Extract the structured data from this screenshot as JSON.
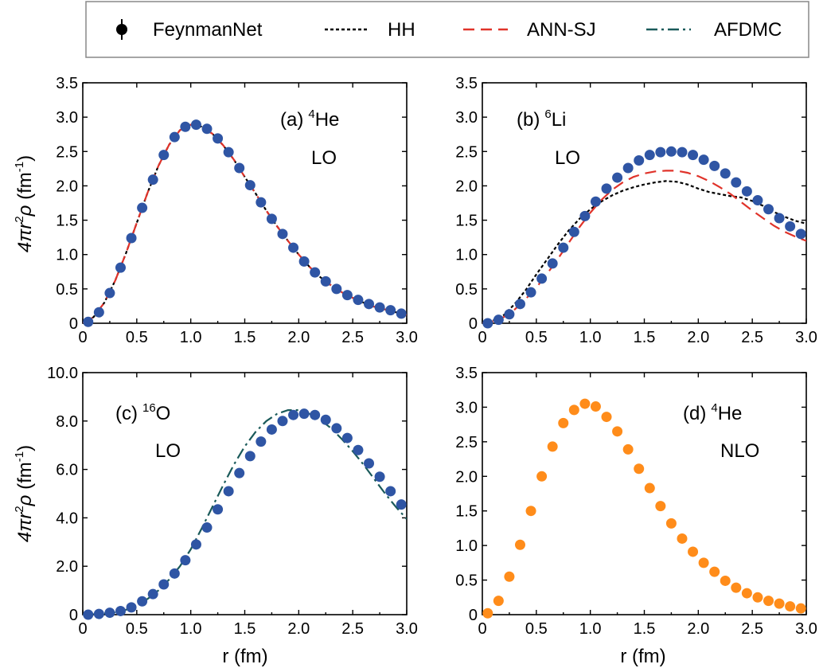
{
  "legend": {
    "items": [
      {
        "label": "FeynmanNet",
        "style": "marker",
        "color": "#000000"
      },
      {
        "label": "HH",
        "style": "dotted",
        "color": "#000000"
      },
      {
        "label": "ANN-SJ",
        "style": "dashed",
        "color": "#e0332a"
      },
      {
        "label": "AFDMC",
        "style": "dashdot",
        "color": "#1a5a5a"
      }
    ]
  },
  "colors": {
    "feynmannet_blue": "#2f55a4",
    "feynmannet_orange": "#ff8c1a",
    "hh": "#000000",
    "ann_sj": "#e0332a",
    "afdmc": "#1a5a5a"
  },
  "chart_data": [
    {
      "id": "a",
      "type": "scatter",
      "panel_label": "(a)",
      "nucleus_mass": "4",
      "nucleus_symbol": "He",
      "order": "LO",
      "xlabel": "",
      "ylabel_text": "4πr²ρ (fm⁻¹)",
      "xlim": [
        0,
        3.0
      ],
      "ylim": [
        0,
        3.5
      ],
      "xticks": [
        "0",
        "0.5",
        "1.0",
        "1.5",
        "2.0",
        "2.5",
        "3.0"
      ],
      "yticks": [
        "0",
        "0.5",
        "1.0",
        "1.5",
        "2.0",
        "2.5",
        "3.0",
        "3.5"
      ],
      "series": [
        {
          "name": "FeynmanNet",
          "kind": "points",
          "color": "#2f55a4",
          "x": [
            0.05,
            0.15,
            0.25,
            0.35,
            0.45,
            0.55,
            0.65,
            0.75,
            0.85,
            0.95,
            1.05,
            1.15,
            1.25,
            1.35,
            1.45,
            1.55,
            1.65,
            1.75,
            1.85,
            1.95,
            2.05,
            2.15,
            2.25,
            2.35,
            2.45,
            2.55,
            2.65,
            2.75,
            2.85,
            2.95
          ],
          "y": [
            0.02,
            0.16,
            0.44,
            0.81,
            1.24,
            1.68,
            2.09,
            2.45,
            2.71,
            2.86,
            2.89,
            2.83,
            2.69,
            2.49,
            2.26,
            2.01,
            1.76,
            1.52,
            1.3,
            1.1,
            0.9,
            0.74,
            0.61,
            0.5,
            0.41,
            0.34,
            0.28,
            0.23,
            0.19,
            0.14
          ]
        },
        {
          "name": "HH",
          "kind": "dotted",
          "color": "#000000",
          "x": [
            0.0,
            0.1,
            0.2,
            0.3,
            0.4,
            0.5,
            0.6,
            0.7,
            0.8,
            0.9,
            1.0,
            1.1,
            1.2,
            1.3,
            1.4,
            1.5,
            1.6,
            1.7,
            1.8,
            1.9,
            2.0,
            2.1,
            2.2,
            2.3,
            2.4,
            2.5,
            2.6,
            2.7,
            2.8,
            2.9,
            3.0
          ],
          "y": [
            0.0,
            0.09,
            0.3,
            0.62,
            1.02,
            1.46,
            1.9,
            2.29,
            2.6,
            2.81,
            2.89,
            2.86,
            2.76,
            2.59,
            2.38,
            2.13,
            1.89,
            1.64,
            1.41,
            1.2,
            1.0,
            0.82,
            0.67,
            0.55,
            0.45,
            0.37,
            0.3,
            0.24,
            0.2,
            0.16,
            0.12
          ]
        },
        {
          "name": "ANN-SJ",
          "kind": "dashed",
          "color": "#e0332a",
          "x": [
            0.0,
            0.1,
            0.2,
            0.3,
            0.4,
            0.5,
            0.6,
            0.7,
            0.8,
            0.9,
            1.0,
            1.1,
            1.2,
            1.3,
            1.4,
            1.5,
            1.6,
            1.7,
            1.8,
            1.9,
            2.0,
            2.1,
            2.2,
            2.3,
            2.4,
            2.5,
            2.6,
            2.7,
            2.8,
            2.9,
            3.0
          ],
          "y": [
            0.0,
            0.09,
            0.3,
            0.62,
            1.02,
            1.46,
            1.9,
            2.29,
            2.6,
            2.81,
            2.89,
            2.86,
            2.76,
            2.59,
            2.38,
            2.13,
            1.89,
            1.64,
            1.41,
            1.2,
            1.0,
            0.82,
            0.67,
            0.55,
            0.45,
            0.37,
            0.3,
            0.24,
            0.2,
            0.16,
            0.12
          ]
        }
      ]
    },
    {
      "id": "b",
      "type": "scatter",
      "panel_label": "(b)",
      "nucleus_mass": "6",
      "nucleus_symbol": "Li",
      "order": "LO",
      "xlabel": "",
      "xlim": [
        0,
        3.0
      ],
      "ylim": [
        0,
        3.5
      ],
      "xticks": [
        "0",
        "0.5",
        "1.0",
        "1.5",
        "2.0",
        "2.5",
        "3.0"
      ],
      "yticks": [
        "0",
        "0.5",
        "1.0",
        "1.5",
        "2.0",
        "2.5",
        "3.0",
        "3.5"
      ],
      "series": [
        {
          "name": "FeynmanNet",
          "kind": "points",
          "color": "#2f55a4",
          "x": [
            0.05,
            0.15,
            0.25,
            0.35,
            0.45,
            0.55,
            0.65,
            0.75,
            0.85,
            0.95,
            1.05,
            1.15,
            1.25,
            1.35,
            1.45,
            1.55,
            1.65,
            1.75,
            1.85,
            1.95,
            2.05,
            2.15,
            2.25,
            2.35,
            2.45,
            2.55,
            2.65,
            2.75,
            2.85,
            2.95
          ],
          "y": [
            0.0,
            0.05,
            0.13,
            0.28,
            0.45,
            0.65,
            0.87,
            1.1,
            1.33,
            1.56,
            1.77,
            1.96,
            2.12,
            2.26,
            2.37,
            2.45,
            2.49,
            2.5,
            2.49,
            2.45,
            2.38,
            2.29,
            2.18,
            2.05,
            1.92,
            1.79,
            1.66,
            1.53,
            1.41,
            1.3
          ]
        },
        {
          "name": "HH",
          "kind": "dotted",
          "color": "#000000",
          "x": [
            0.0,
            0.1,
            0.2,
            0.3,
            0.4,
            0.5,
            0.6,
            0.7,
            0.8,
            0.9,
            1.0,
            1.1,
            1.2,
            1.3,
            1.4,
            1.5,
            1.6,
            1.7,
            1.8,
            1.9,
            2.0,
            2.1,
            2.2,
            2.3,
            2.4,
            2.5,
            2.6,
            2.7,
            2.8,
            2.9,
            3.0
          ],
          "y": [
            0.0,
            0.04,
            0.12,
            0.28,
            0.48,
            0.71,
            0.93,
            1.15,
            1.35,
            1.52,
            1.66,
            1.77,
            1.86,
            1.93,
            1.98,
            2.02,
            2.05,
            2.07,
            2.06,
            2.02,
            1.96,
            1.91,
            1.88,
            1.85,
            1.83,
            1.78,
            1.71,
            1.62,
            1.55,
            1.49,
            1.45
          ]
        },
        {
          "name": "ANN-SJ",
          "kind": "dashed",
          "color": "#e0332a",
          "x": [
            0.0,
            0.1,
            0.2,
            0.3,
            0.4,
            0.5,
            0.6,
            0.7,
            0.8,
            0.9,
            1.0,
            1.1,
            1.2,
            1.3,
            1.4,
            1.5,
            1.6,
            1.7,
            1.8,
            1.9,
            2.0,
            2.1,
            2.2,
            2.3,
            2.4,
            2.5,
            2.6,
            2.7,
            2.8,
            2.9,
            3.0
          ],
          "y": [
            0.0,
            0.03,
            0.09,
            0.2,
            0.35,
            0.52,
            0.72,
            0.94,
            1.17,
            1.4,
            1.61,
            1.79,
            1.94,
            2.05,
            2.13,
            2.18,
            2.21,
            2.22,
            2.22,
            2.19,
            2.14,
            2.07,
            1.98,
            1.88,
            1.76,
            1.64,
            1.53,
            1.42,
            1.33,
            1.26,
            1.2
          ]
        }
      ]
    },
    {
      "id": "c",
      "type": "scatter",
      "panel_label": "(c)",
      "nucleus_mass": "16",
      "nucleus_symbol": "O",
      "order": "LO",
      "xlabel": "r (fm)",
      "ylabel_text": "4πr²ρ (fm⁻¹)",
      "xlim": [
        0,
        3.0
      ],
      "ylim": [
        0,
        10.0
      ],
      "xticks": [
        "0",
        "0.5",
        "1.0",
        "1.5",
        "2.0",
        "2.5",
        "3.0"
      ],
      "yticks": [
        "0",
        "2.0",
        "4.0",
        "6.0",
        "8.0",
        "10.0"
      ],
      "series": [
        {
          "name": "FeynmanNet",
          "kind": "points",
          "color": "#2f55a4",
          "x": [
            0.05,
            0.15,
            0.25,
            0.35,
            0.45,
            0.55,
            0.65,
            0.75,
            0.85,
            0.95,
            1.05,
            1.15,
            1.25,
            1.35,
            1.45,
            1.55,
            1.65,
            1.75,
            1.85,
            1.95,
            2.05,
            2.15,
            2.25,
            2.35,
            2.45,
            2.55,
            2.65,
            2.75,
            2.85,
            2.95
          ],
          "y": [
            0.0,
            0.03,
            0.08,
            0.15,
            0.3,
            0.55,
            0.85,
            1.25,
            1.7,
            2.25,
            2.9,
            3.6,
            4.35,
            5.1,
            5.85,
            6.55,
            7.15,
            7.65,
            8.0,
            8.25,
            8.3,
            8.25,
            8.05,
            7.7,
            7.3,
            6.8,
            6.25,
            5.7,
            5.1,
            4.55
          ]
        },
        {
          "name": "AFDMC",
          "kind": "dashdot",
          "color": "#1a5a5a",
          "x": [
            0.0,
            0.1,
            0.2,
            0.3,
            0.4,
            0.5,
            0.6,
            0.7,
            0.8,
            0.9,
            1.0,
            1.1,
            1.2,
            1.3,
            1.4,
            1.5,
            1.6,
            1.7,
            1.8,
            1.9,
            2.0,
            2.1,
            2.2,
            2.3,
            2.4,
            2.5,
            2.6,
            2.7,
            2.8,
            2.9,
            3.0
          ],
          "y": [
            0.0,
            0.02,
            0.05,
            0.1,
            0.2,
            0.38,
            0.65,
            1.0,
            1.45,
            2.0,
            2.7,
            3.55,
            4.45,
            5.35,
            6.2,
            6.95,
            7.55,
            8.0,
            8.3,
            8.45,
            8.45,
            8.3,
            8.05,
            7.7,
            7.25,
            6.75,
            6.2,
            5.6,
            5.0,
            4.45,
            3.95
          ]
        }
      ]
    },
    {
      "id": "d",
      "type": "scatter",
      "panel_label": "(d)",
      "nucleus_mass": "4",
      "nucleus_symbol": "He",
      "order": "NLO",
      "xlabel": "r (fm)",
      "xlim": [
        0,
        3.0
      ],
      "ylim": [
        0,
        3.5
      ],
      "xticks": [
        "0",
        "0.5",
        "1.0",
        "1.5",
        "2.0",
        "2.5",
        "3.0"
      ],
      "yticks": [
        "0",
        "0.5",
        "1.0",
        "1.5",
        "2.0",
        "2.5",
        "3.0",
        "3.5"
      ],
      "series": [
        {
          "name": "FeynmanNet",
          "kind": "points",
          "color": "#ff8c1a",
          "x": [
            0.05,
            0.15,
            0.25,
            0.35,
            0.45,
            0.55,
            0.65,
            0.75,
            0.85,
            0.95,
            1.05,
            1.15,
            1.25,
            1.35,
            1.45,
            1.55,
            1.65,
            1.75,
            1.85,
            1.95,
            2.05,
            2.15,
            2.25,
            2.35,
            2.45,
            2.55,
            2.65,
            2.75,
            2.85,
            2.95
          ],
          "y": [
            0.02,
            0.2,
            0.55,
            1.01,
            1.5,
            2.0,
            2.43,
            2.77,
            2.96,
            3.05,
            3.01,
            2.86,
            2.65,
            2.39,
            2.11,
            1.83,
            1.57,
            1.32,
            1.1,
            0.91,
            0.75,
            0.62,
            0.49,
            0.39,
            0.31,
            0.25,
            0.2,
            0.16,
            0.12,
            0.09
          ]
        }
      ]
    }
  ]
}
